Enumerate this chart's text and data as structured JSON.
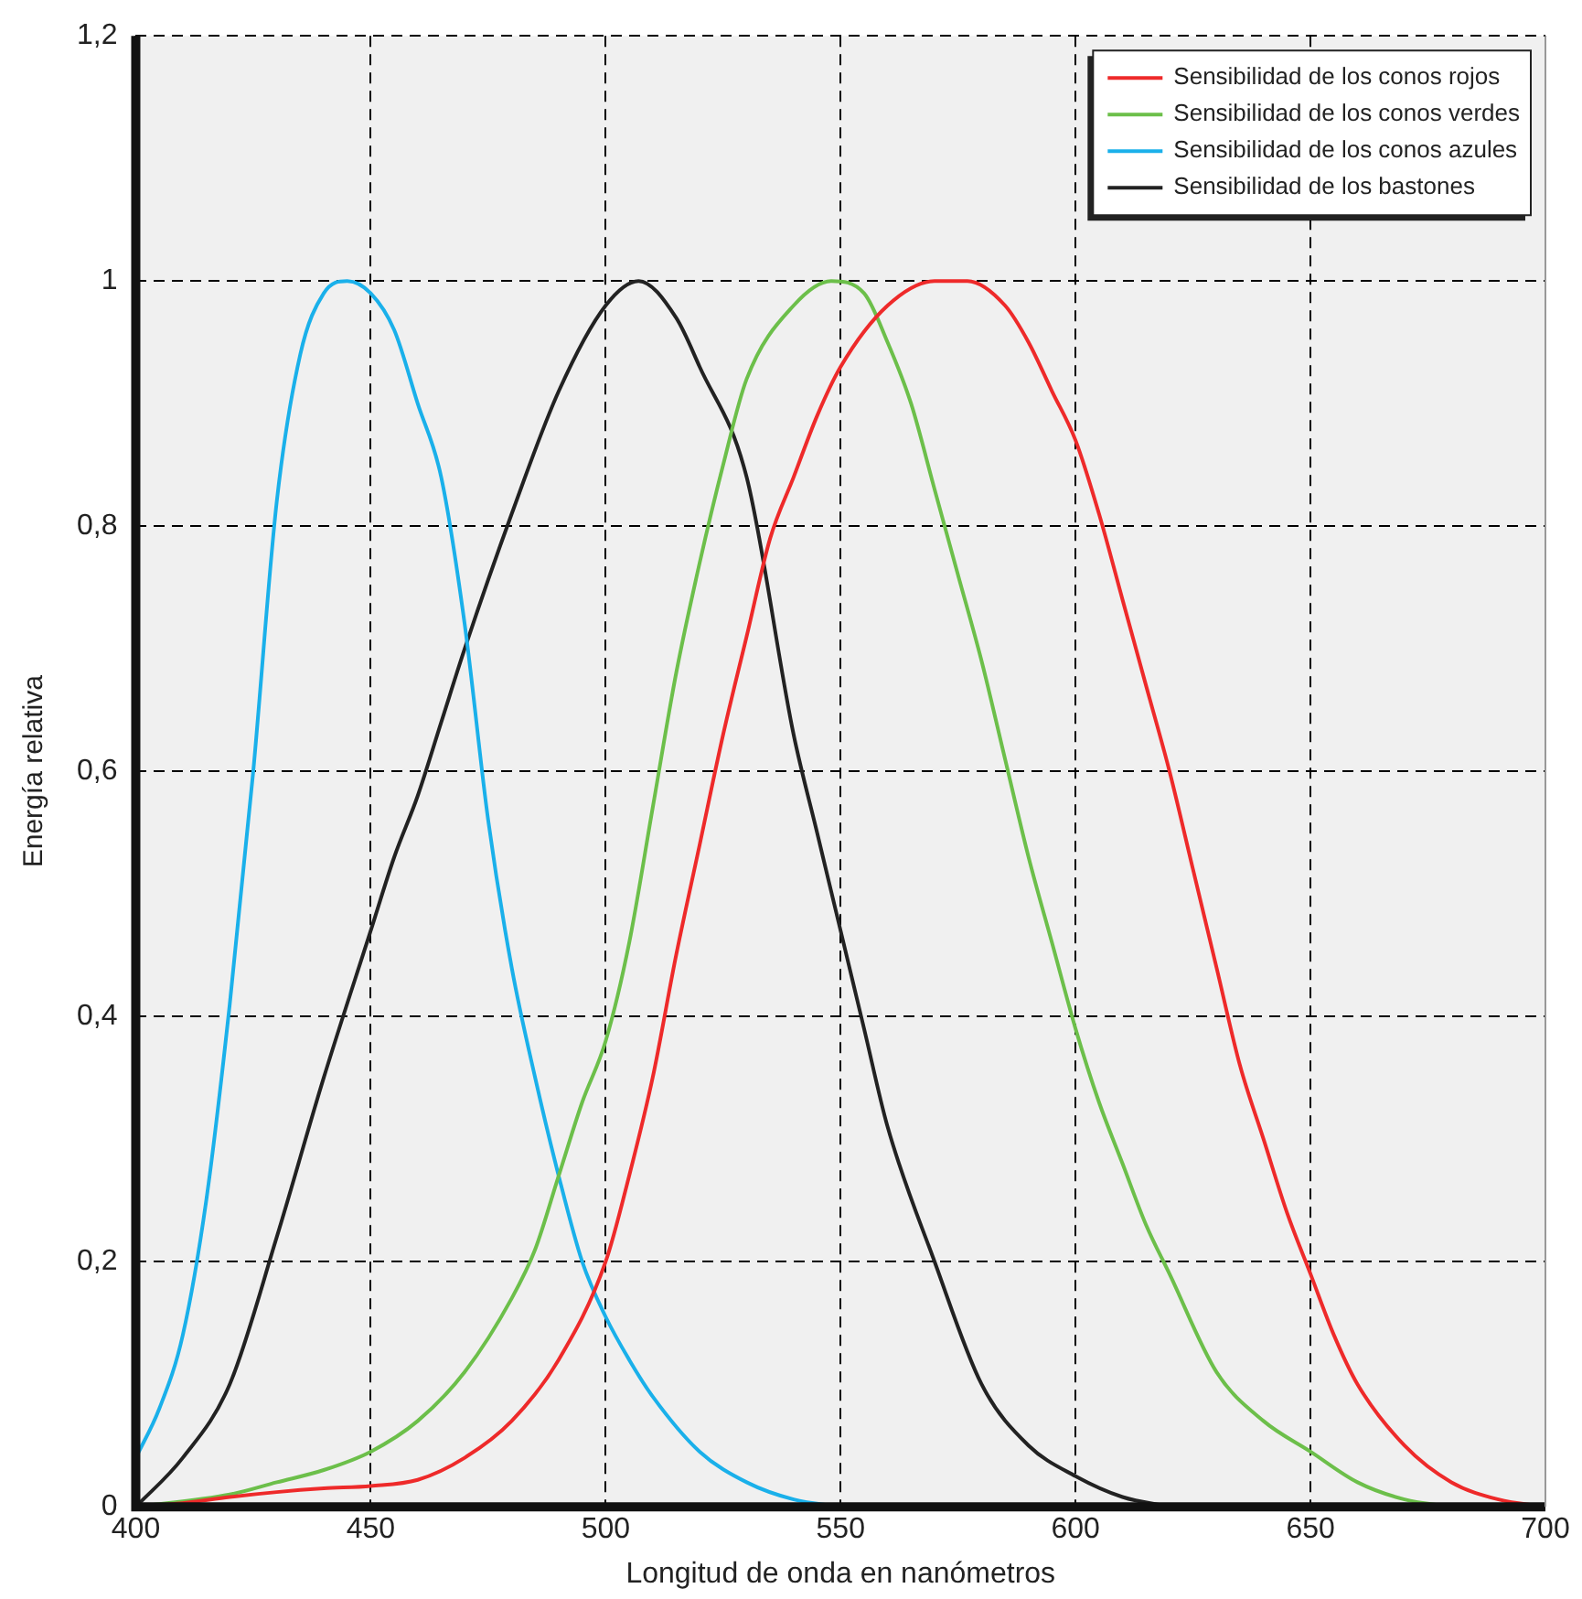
{
  "chart_data": {
    "type": "line",
    "xlabel": "Longitud de onda en nanómetros",
    "ylabel": "Energía relativa",
    "xlim": [
      400,
      700
    ],
    "xticks": [
      400,
      450,
      500,
      550,
      600,
      650,
      700
    ],
    "ylim": [
      0,
      1.2
    ],
    "yticks": [
      {
        "value": 0,
        "label": "0"
      },
      {
        "value": 0.2,
        "label": "0,2"
      },
      {
        "value": 0.4,
        "label": "0,4"
      },
      {
        "value": 0.6,
        "label": "0,6"
      },
      {
        "value": 0.8,
        "label": "0,8"
      },
      {
        "value": 1,
        "label": "1"
      },
      {
        "value": 1.2,
        "label": "1,2"
      }
    ],
    "grid": true,
    "legend": "top right",
    "marker": "none",
    "line_style": "solid",
    "series": [
      {
        "name": "Sensibilidad de los conos rojos",
        "color": "#ee2a2a",
        "x": [
          400,
          410,
          420,
          430,
          440,
          450,
          460,
          470,
          480,
          490,
          500,
          505,
          510,
          515,
          520,
          525,
          530,
          535,
          540,
          545,
          550,
          560,
          570,
          577,
          585,
          590,
          595,
          600,
          605,
          610,
          615,
          620,
          625,
          630,
          635,
          640,
          645,
          650,
          655,
          660,
          670,
          680,
          690,
          700
        ],
        "values": [
          0,
          0.003,
          0.008,
          0.012,
          0.015,
          0.017,
          0.022,
          0.04,
          0.07,
          0.12,
          0.2,
          0.27,
          0.35,
          0.45,
          0.54,
          0.63,
          0.71,
          0.79,
          0.84,
          0.89,
          0.93,
          0.98,
          1.0,
          1.0,
          0.98,
          0.95,
          0.91,
          0.87,
          0.81,
          0.74,
          0.67,
          0.6,
          0.52,
          0.44,
          0.36,
          0.3,
          0.24,
          0.19,
          0.14,
          0.1,
          0.05,
          0.02,
          0.006,
          0
        ]
      },
      {
        "name": "Sensibilidad de los conos verdes",
        "color": "#6cbf4a",
        "x": [
          400,
          420,
          430,
          440,
          450,
          460,
          470,
          480,
          485,
          490,
          495,
          500,
          505,
          510,
          515,
          520,
          525,
          530,
          540,
          548,
          555,
          560,
          565,
          570,
          575,
          580,
          585,
          590,
          595,
          600,
          605,
          610,
          615,
          620,
          630,
          640,
          650,
          660,
          670,
          680
        ],
        "values": [
          0,
          0.01,
          0.02,
          0.03,
          0.045,
          0.07,
          0.11,
          0.17,
          0.21,
          0.27,
          0.33,
          0.38,
          0.46,
          0.57,
          0.68,
          0.77,
          0.85,
          0.92,
          0.98,
          1.0,
          0.99,
          0.95,
          0.9,
          0.83,
          0.76,
          0.69,
          0.61,
          0.53,
          0.46,
          0.39,
          0.33,
          0.28,
          0.23,
          0.19,
          0.11,
          0.07,
          0.045,
          0.02,
          0.006,
          0
        ]
      },
      {
        "name": "Sensibilidad de los conos azules",
        "color": "#1ab0ea",
        "x": [
          400,
          405,
          410,
          415,
          420,
          425,
          430,
          435,
          440,
          445,
          450,
          455,
          460,
          465,
          470,
          475,
          480,
          485,
          490,
          495,
          500,
          505,
          510,
          520,
          530,
          540,
          550
        ],
        "values": [
          0.04,
          0.08,
          0.14,
          0.25,
          0.41,
          0.6,
          0.82,
          0.94,
          0.99,
          1.0,
          0.99,
          0.96,
          0.9,
          0.84,
          0.72,
          0.56,
          0.44,
          0.35,
          0.27,
          0.2,
          0.155,
          0.12,
          0.09,
          0.045,
          0.02,
          0.006,
          0
        ]
      },
      {
        "name": "Sensibilidad de los bastones",
        "color": "#222222",
        "x": [
          400,
          410,
          420,
          430,
          440,
          450,
          455,
          460,
          465,
          470,
          480,
          490,
          500,
          507,
          515,
          520,
          530,
          540,
          545,
          550,
          555,
          560,
          570,
          580,
          590,
          600,
          610,
          620
        ],
        "values": [
          0,
          0.04,
          0.1,
          0.22,
          0.35,
          0.47,
          0.53,
          0.58,
          0.64,
          0.7,
          0.81,
          0.91,
          0.98,
          1.0,
          0.97,
          0.93,
          0.84,
          0.63,
          0.55,
          0.47,
          0.39,
          0.31,
          0.2,
          0.1,
          0.05,
          0.025,
          0.008,
          0
        ]
      }
    ]
  }
}
